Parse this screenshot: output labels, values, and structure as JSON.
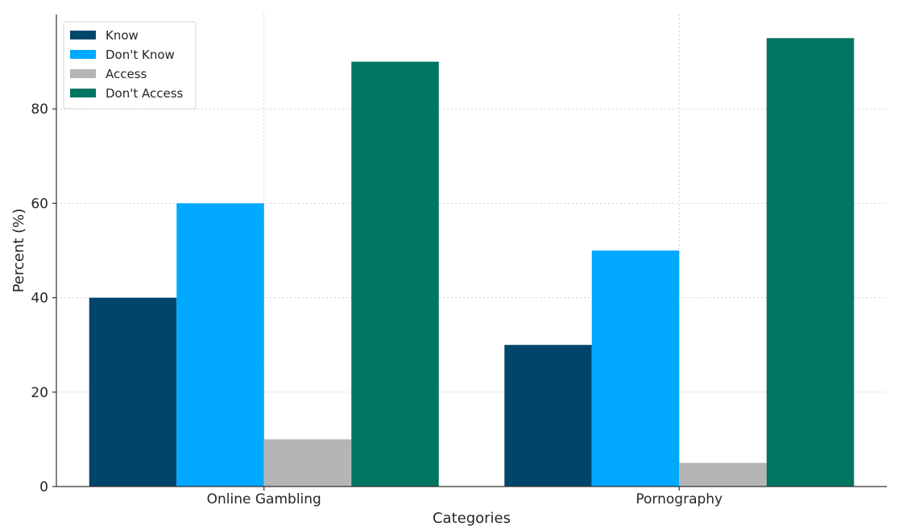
{
  "chart_data": {
    "type": "bar",
    "categories": [
      "Online Gambling",
      "Pornography"
    ],
    "series": [
      {
        "name": "Know",
        "values": [
          40,
          30
        ],
        "color": "#00466b"
      },
      {
        "name": "Don't Know",
        "values": [
          60,
          50
        ],
        "color": "#00a8ff"
      },
      {
        "name": "Access",
        "values": [
          10,
          5
        ],
        "color": "#b5b5b5"
      },
      {
        "name": "Don't Access",
        "values": [
          90,
          95
        ],
        "color": "#007562"
      }
    ],
    "title": "",
    "xlabel": "Categories",
    "ylabel": "Percent (%)",
    "ylim": [
      0,
      100
    ],
    "yticks": [
      0,
      20,
      40,
      60,
      80
    ],
    "grid": true,
    "legend_position": "top-left"
  }
}
